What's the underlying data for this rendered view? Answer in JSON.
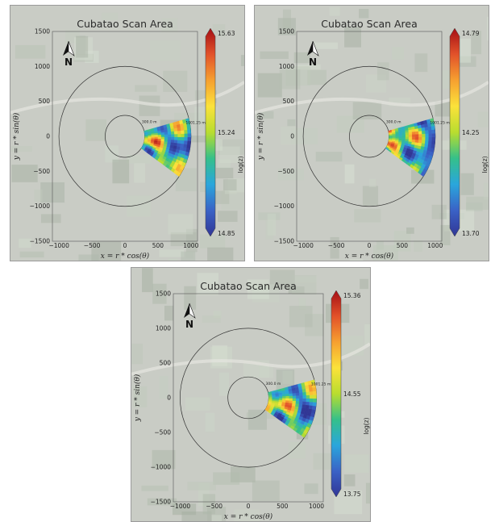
{
  "chart_data": [
    {
      "type": "heatmap",
      "title": "Cubatao Scan Area",
      "xlabel": "x = r * cos(θ)",
      "ylabel": "y = r * sin(θ)",
      "xlim": [
        -1100,
        1100
      ],
      "ylim": [
        -1500,
        1500
      ],
      "x_ticks": [
        "−1000",
        "−500",
        "0",
        "500",
        "1000"
      ],
      "y_ticks": [
        "1500",
        "1000",
        "500",
        "0",
        "−500",
        "−1000",
        "−1500"
      ],
      "colorbar": {
        "label": "log(z)",
        "ticks": [
          "15.63",
          "15.24",
          "14.85"
        ],
        "min": 14.85,
        "max": 15.63
      },
      "range_labels": [
        "300.0 m",
        "1001.25 m"
      ],
      "north_label": "N"
    },
    {
      "type": "heatmap",
      "title": "Cubatao Scan Area",
      "xlabel": "x = r * cos(θ)",
      "ylabel": "y = r * sin(θ)",
      "xlim": [
        -1100,
        1100
      ],
      "ylim": [
        -1500,
        1500
      ],
      "x_ticks": [
        "−1000",
        "−500",
        "0",
        "500",
        "1000"
      ],
      "y_ticks": [
        "1500",
        "1000",
        "500",
        "0",
        "−500",
        "−1000",
        "−1500"
      ],
      "colorbar": {
        "label": "log(z)",
        "ticks": [
          "14.79",
          "14.25",
          "13.70"
        ],
        "min": 13.7,
        "max": 14.79
      },
      "range_labels": [
        "300.0 m",
        "1001.25 m"
      ],
      "north_label": "N"
    },
    {
      "type": "heatmap",
      "title": "Cubatao Scan Area",
      "xlabel": "x = r * cos(θ)",
      "ylabel": "y = r * sin(θ)",
      "xlim": [
        -1100,
        1100
      ],
      "ylim": [
        -1500,
        1500
      ],
      "x_ticks": [
        "−1000",
        "−500",
        "0",
        "500",
        "1000"
      ],
      "y_ticks": [
        "1500",
        "1000",
        "500",
        "0",
        "−500",
        "−1000",
        "−1500"
      ],
      "colorbar": {
        "label": "log(z)",
        "ticks": [
          "15.36",
          "14.55",
          "13.75"
        ],
        "min": 13.75,
        "max": 15.36
      },
      "range_labels": [
        "300.0 m",
        "1001.25 m"
      ],
      "north_label": "N"
    }
  ],
  "colors": {
    "colormap": [
      "#313695",
      "#3a62c6",
      "#2aa6dc",
      "#35c08a",
      "#b9dd2f",
      "#fbe23a",
      "#f6a030",
      "#e2522a",
      "#a50f15"
    ],
    "map_background": "#c9ccc5",
    "circle": "#333333"
  },
  "icons": {
    "north_arrow": "north-arrow-icon"
  }
}
